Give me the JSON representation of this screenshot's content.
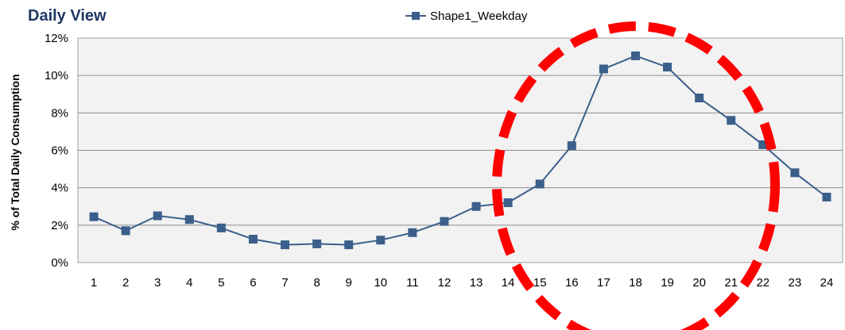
{
  "chart_data": {
    "type": "line",
    "title": "Daily View",
    "xlabel": "",
    "ylabel": "% of Total Daily Consumption",
    "categories": [
      "1",
      "2",
      "3",
      "4",
      "5",
      "6",
      "7",
      "8",
      "9",
      "10",
      "11",
      "12",
      "13",
      "14",
      "15",
      "16",
      "17",
      "18",
      "19",
      "20",
      "21",
      "22",
      "23",
      "24"
    ],
    "series": [
      {
        "name": "Shape1_Weekday",
        "color": "#3a5f8a",
        "values": [
          2.45,
          1.7,
          2.5,
          2.3,
          1.85,
          1.25,
          0.95,
          1.0,
          0.95,
          1.2,
          1.6,
          2.2,
          3.0,
          3.2,
          4.2,
          6.25,
          10.35,
          11.05,
          10.45,
          8.8,
          7.6,
          6.3,
          4.8,
          3.5
        ]
      }
    ],
    "ylim": [
      0,
      12
    ],
    "yticks": [
      0,
      2,
      4,
      6,
      8,
      10,
      12
    ],
    "ytick_labels": [
      "0%",
      "2%",
      "4%",
      "6%",
      "8%",
      "10%",
      "12%"
    ],
    "grid": true,
    "legend_position": "top",
    "annotation": {
      "shape": "dashed-ellipse",
      "color": "#ff0000",
      "highlights_hours": [
        15,
        22
      ]
    }
  }
}
